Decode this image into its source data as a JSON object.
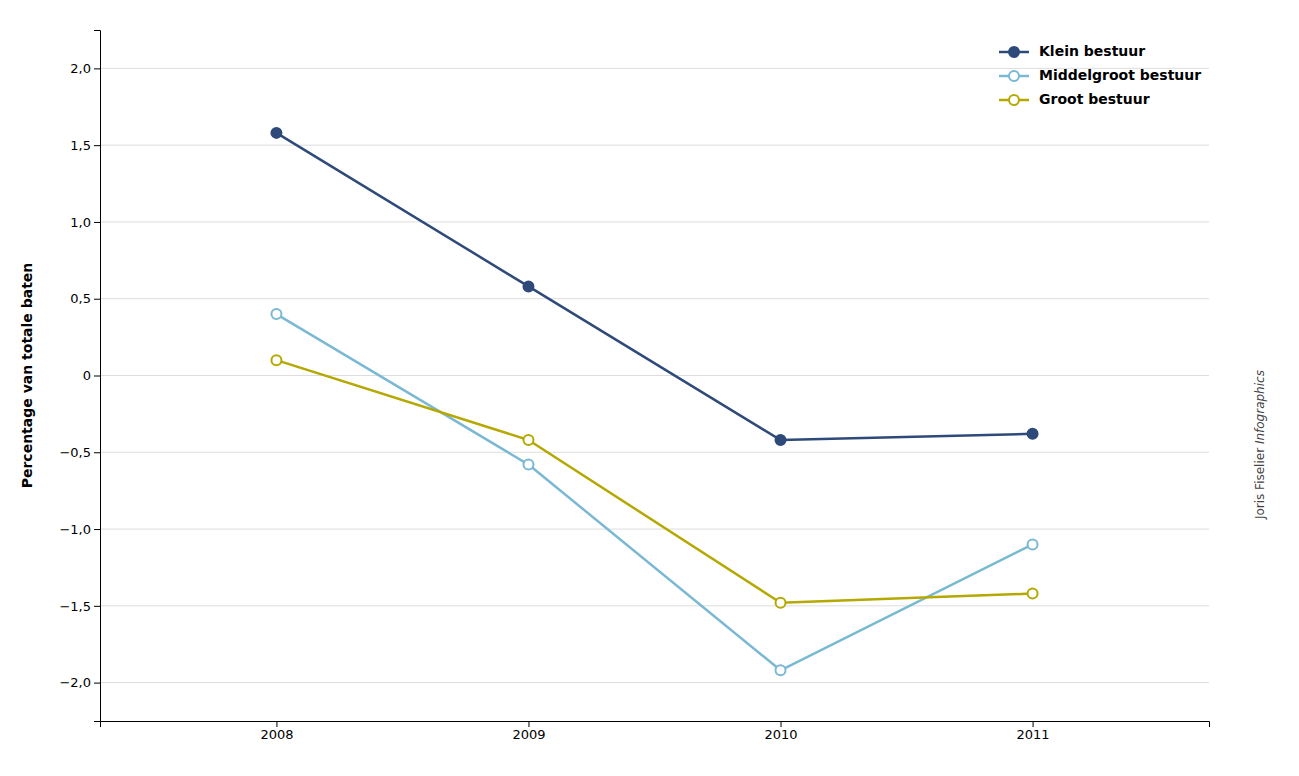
{
  "chart_data": {
    "type": "line",
    "y_label": "Percentage van totale baten",
    "x": [
      2008,
      2009,
      2010,
      2011
    ],
    "series": [
      {
        "name": "Klein bestuur",
        "color": "#2E4A7A",
        "marker": "circle",
        "values": [
          1.58,
          0.58,
          -0.42,
          -0.38
        ]
      },
      {
        "name": "Middelgroot bestuur",
        "color": "#7BB8D4",
        "marker": "circle-open",
        "values": [
          0.4,
          -0.58,
          -1.92,
          -1.1
        ]
      },
      {
        "name": "Groot bestuur",
        "color": "#B5A800",
        "marker": "circle-open",
        "values": [
          0.1,
          -0.42,
          -1.48,
          -1.42
        ]
      }
    ],
    "xlim": [
      2007.3,
      2011.7
    ],
    "xticks": [
      2008,
      2009,
      2010,
      2011
    ],
    "ylim": [
      -2.25,
      2.25
    ],
    "yticks": [
      {
        "value": -2.0,
        "label": "−2,0"
      },
      {
        "value": -1.5,
        "label": "−1,5"
      },
      {
        "value": -1.0,
        "label": "−1,0"
      },
      {
        "value": -0.5,
        "label": "−0,5"
      },
      0,
      {
        "value": 0.5,
        "label": "0,5"
      },
      {
        "value": 1.0,
        "label": "1,0"
      },
      {
        "value": 1.5,
        "label": "1,5"
      },
      {
        "value": 2.0,
        "label": "2,0"
      }
    ],
    "grid": true,
    "legend": "upper right",
    "annotations": [
      "Joris Fiselier ",
      "Infographics"
    ]
  }
}
